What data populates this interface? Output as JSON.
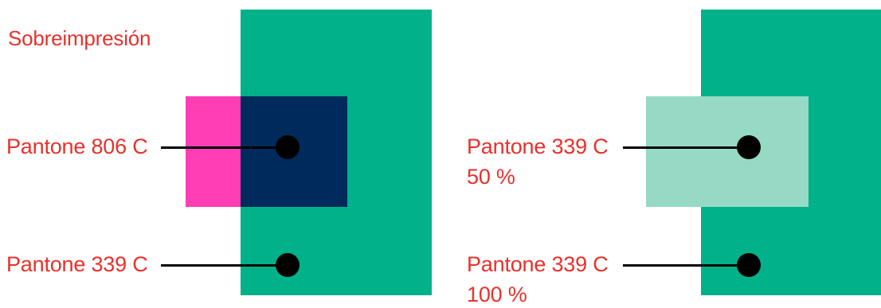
{
  "colors": {
    "label_red": "#e8312b",
    "pantone_339c": "#00b189",
    "pantone_339c_50": "#96dac6",
    "pantone_806c": "#ff3eb5",
    "overprint_result": "#002a5c",
    "leader_black": "#000000",
    "background": "#ffffff"
  },
  "left_panel": {
    "title": "Sobreimpresión",
    "callout_top": {
      "label": "Pantone 806 C"
    },
    "callout_bottom": {
      "label": "Pantone 339 C"
    }
  },
  "right_panel": {
    "callout_top": {
      "label": "Pantone 339 C",
      "tint": "50 %"
    },
    "callout_bottom": {
      "label": "Pantone 339 C",
      "tint": "100 %"
    }
  }
}
